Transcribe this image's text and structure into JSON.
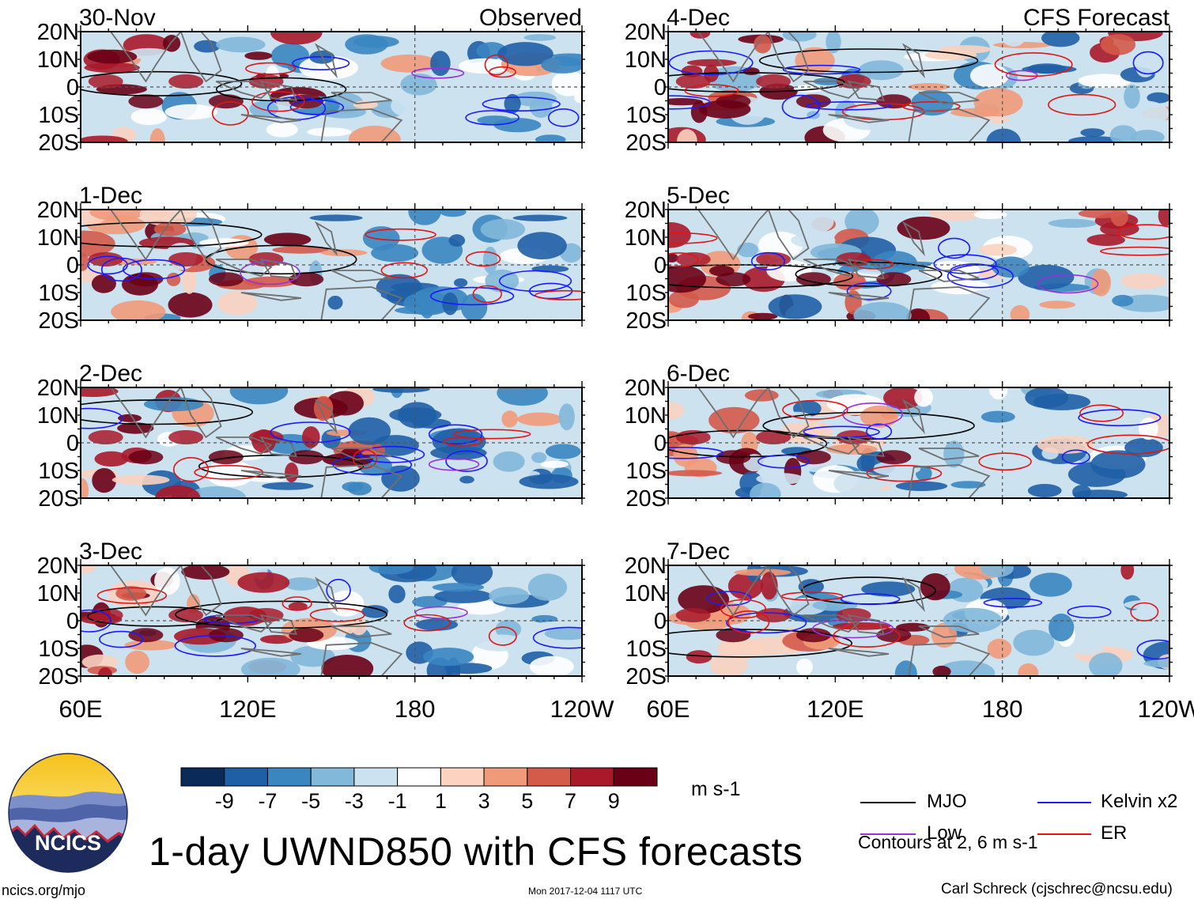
{
  "chart_data": {
    "type": "heatmap",
    "variable": "UWND850",
    "title": "1-day UWND850 with CFS forecasts",
    "units": "m s-1",
    "x_ticks": [
      "60E",
      "120E",
      "180",
      "120W"
    ],
    "y_ticks": [
      "20N",
      "10N",
      "0",
      "10S",
      "20S"
    ],
    "x_range_deg_east": [
      60,
      240
    ],
    "y_range_deg": [
      -20,
      20
    ],
    "colorbar": {
      "labels": [
        "-9",
        "-7",
        "-5",
        "-3",
        "-1",
        "1",
        "3",
        "5",
        "7",
        "9"
      ],
      "colors": [
        "#0a2a5a",
        "#1f5fa6",
        "#3a86c1",
        "#82b8d9",
        "#cde2ef",
        "#ffffff",
        "#fbd3c0",
        "#f19a79",
        "#d45a4a",
        "#a81a2a",
        "#6a0016"
      ]
    },
    "panels": [
      {
        "date": "30-Nov",
        "label": "Observed",
        "source": "observed"
      },
      {
        "date": "1-Dec",
        "source": "observed"
      },
      {
        "date": "2-Dec",
        "source": "observed"
      },
      {
        "date": "3-Dec",
        "source": "observed"
      },
      {
        "date": "4-Dec",
        "label": "CFS Forecast",
        "source": "forecast"
      },
      {
        "date": "5-Dec",
        "source": "forecast"
      },
      {
        "date": "6-Dec",
        "source": "forecast"
      },
      {
        "date": "7-Dec",
        "source": "forecast"
      }
    ],
    "legend": [
      {
        "name": "MJO",
        "color": "#000000"
      },
      {
        "name": "Kelvin x2",
        "color": "#1a1aff"
      },
      {
        "name": "Low",
        "color": "#9a30d8"
      },
      {
        "name": "ER",
        "color": "#e01515"
      }
    ],
    "contours_note": "Contours at 2, 6 m s-1"
  },
  "logo_text": "NCICS",
  "footer": {
    "site": "ncics.org/mjo",
    "date": "Mon 2017-12-04 1117 UTC",
    "credit": "Carl Schreck (cjschrec@ncsu.edu)"
  }
}
